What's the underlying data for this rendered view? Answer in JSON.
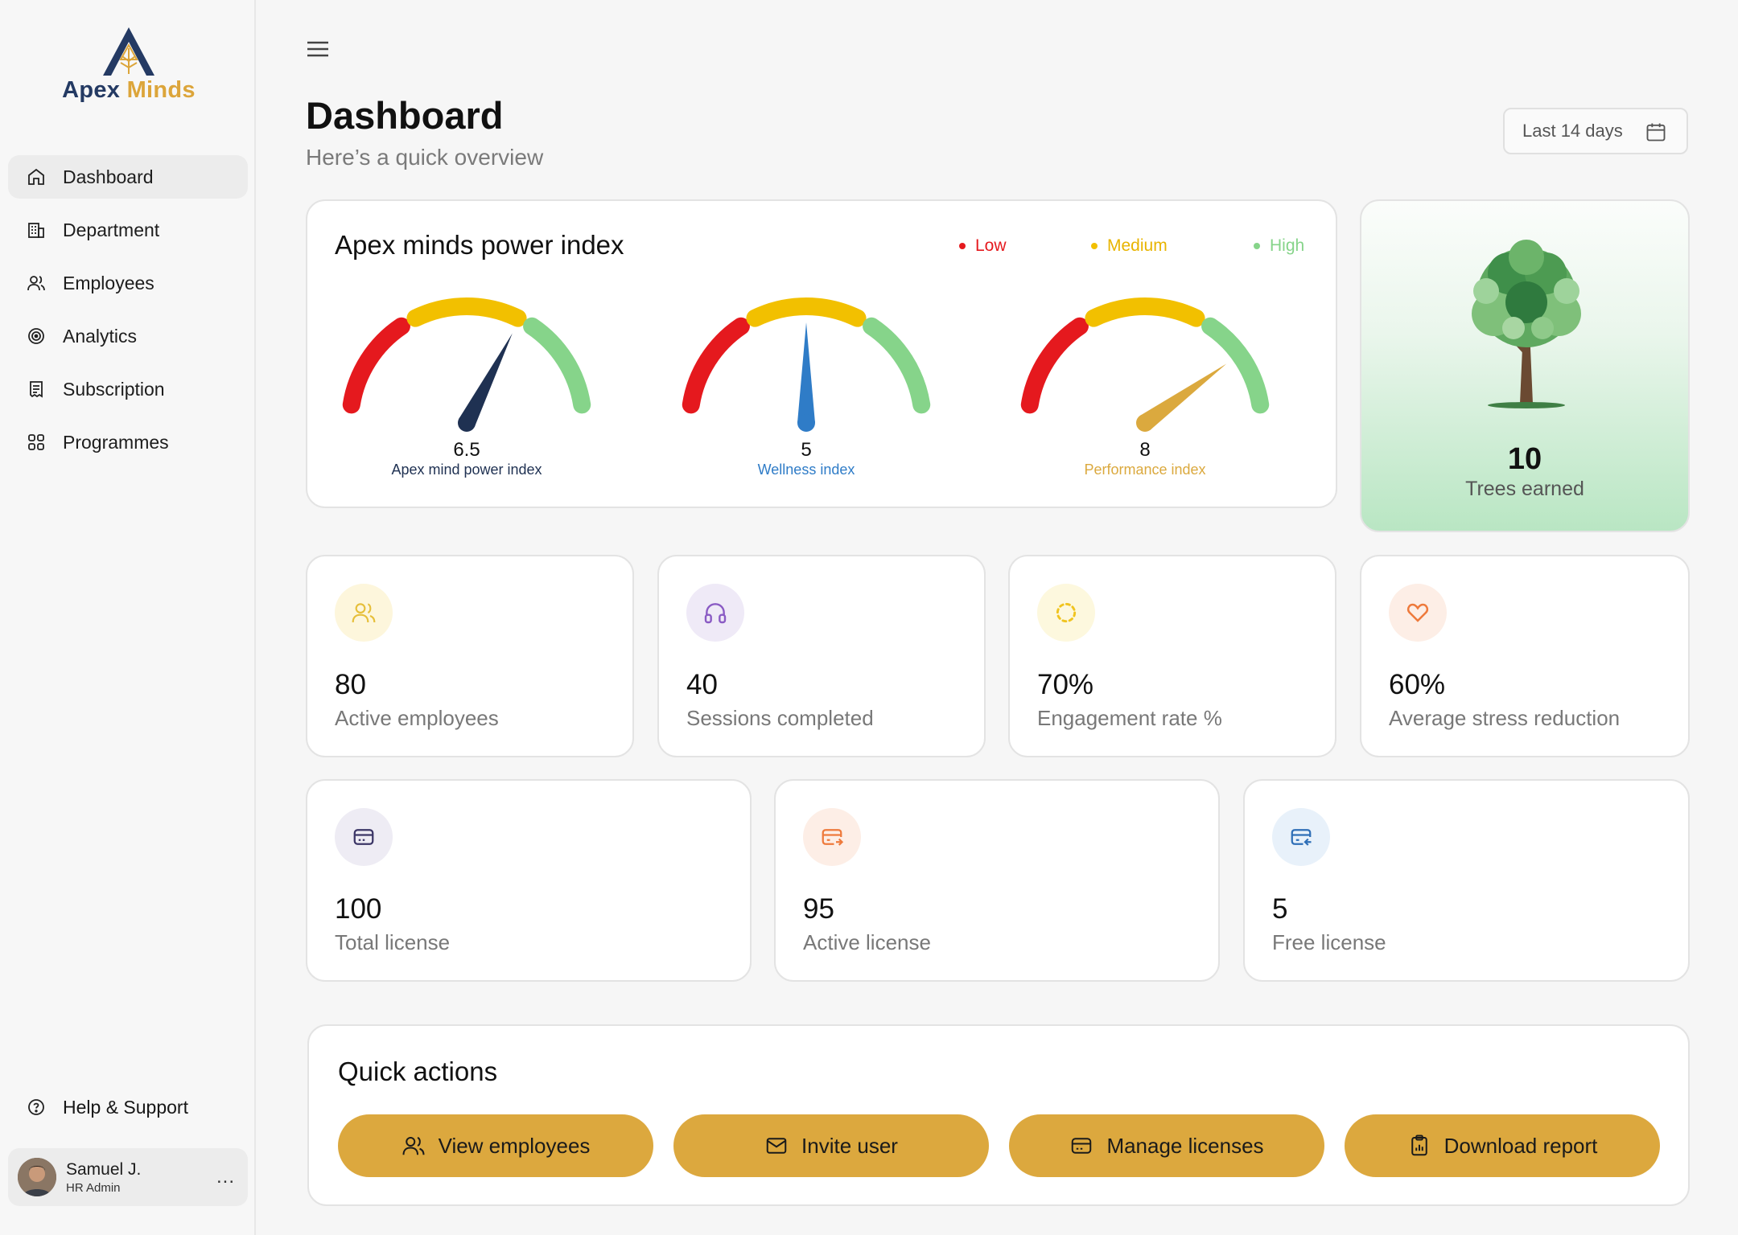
{
  "brand": {
    "name_part1": "Apex",
    "name_part2": "Minds",
    "accent": "#dca53a",
    "navy": "#243a63"
  },
  "sidebar": {
    "items": [
      {
        "label": "Dashboard",
        "icon": "home-icon",
        "active": true
      },
      {
        "label": "Department",
        "icon": "building-icon"
      },
      {
        "label": "Employees",
        "icon": "users-icon"
      },
      {
        "label": "Analytics",
        "icon": "analytics-icon"
      },
      {
        "label": "Subscription",
        "icon": "receipt-icon"
      },
      {
        "label": "Programmes",
        "icon": "grid-icon"
      }
    ],
    "help_label": "Help & Support",
    "user": {
      "name": "Samuel J.",
      "role": "HR Admin",
      "more": "..."
    }
  },
  "header": {
    "title": "Dashboard",
    "subtitle": "Here’s a quick overview",
    "date_range": "Last 14 days"
  },
  "power_index": {
    "title": "Apex minds power index",
    "legend": [
      {
        "label": "Low",
        "color": "#e5191e"
      },
      {
        "label": "Medium",
        "color": "#f2c000"
      },
      {
        "label": "High",
        "color": "#86d48a"
      }
    ],
    "gauges": [
      {
        "value": "6.5",
        "label": "Apex mind power index",
        "score": 6.5,
        "needle_color": "#1f3152",
        "label_color": "#1f3152"
      },
      {
        "value": "5",
        "label": "Wellness index",
        "score": 5,
        "needle_color": "#2f7cc7",
        "label_color": "#2f7cc7"
      },
      {
        "value": "8",
        "label": "Performance index",
        "score": 8,
        "needle_color": "#dba93e",
        "label_color": "#dba93e"
      }
    ]
  },
  "trees": {
    "value": "10",
    "label": "Trees earned"
  },
  "stats": [
    {
      "value": "80",
      "label": "Active employees",
      "icon": "users-icon"
    },
    {
      "value": "40",
      "label": "Sessions completed",
      "icon": "headphones-icon"
    },
    {
      "value": "70%",
      "label": "Engagement rate %",
      "icon": "loader-icon"
    },
    {
      "value": "60%",
      "label": "Average stress reduction",
      "icon": "heart-icon"
    }
  ],
  "licenses": [
    {
      "value": "100",
      "label": "Total license",
      "icon": "card-icon"
    },
    {
      "value": "95",
      "label": "Active license",
      "icon": "card-transfer-icon"
    },
    {
      "value": "5",
      "label": "Free license",
      "icon": "card-return-icon"
    }
  ],
  "quick_actions": {
    "title": "Quick actions",
    "buttons": [
      {
        "label": "View employees",
        "icon": "users-icon"
      },
      {
        "label": "Invite user",
        "icon": "mail-icon"
      },
      {
        "label": "Manage licenses",
        "icon": "card-icon"
      },
      {
        "label": "Download report",
        "icon": "clipboard-icon"
      }
    ]
  }
}
